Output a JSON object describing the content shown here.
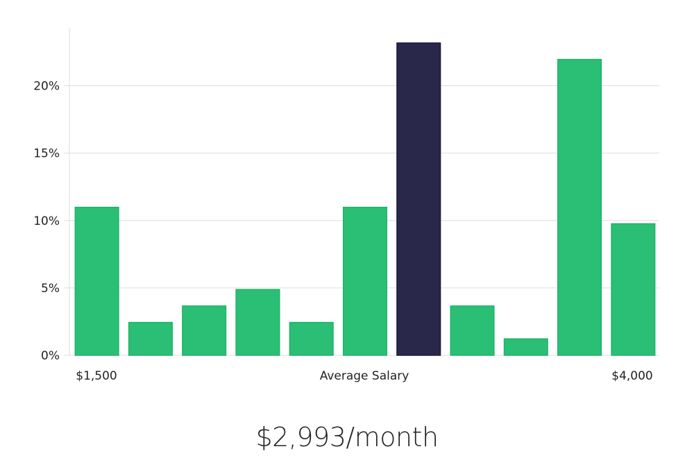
{
  "chart_data": {
    "type": "bar",
    "title": "",
    "xlabel": "Average Salary",
    "ylabel": "",
    "x_tick_labels": [
      "$1,500",
      "$4,000"
    ],
    "categories": [
      "bin1",
      "bin2",
      "bin3",
      "bin4",
      "bin5",
      "bin6",
      "bin7",
      "bin8",
      "bin9",
      "bin10",
      "bin11"
    ],
    "values": [
      10.98,
      2.44,
      3.66,
      4.88,
      2.44,
      10.98,
      23.17,
      3.66,
      1.22,
      21.95,
      9.76
    ],
    "highlight_index": 6,
    "ylim": [
      0,
      24.3
    ],
    "yticks": [
      0,
      5,
      10,
      15,
      20
    ],
    "ytick_labels": [
      "0%",
      "5%",
      "10%",
      "15%",
      "20%"
    ],
    "grid": true,
    "colors": {
      "bar": "#2bbf75",
      "bar_border": "#1fb36a",
      "highlight": "#29274a",
      "highlight_border": "#1a1838",
      "grid": "#dddddd"
    }
  },
  "headline": "$2,993/month"
}
